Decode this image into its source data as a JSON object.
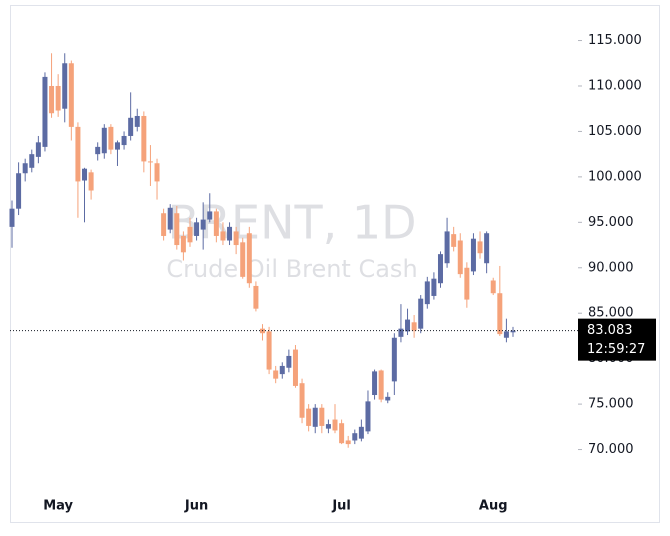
{
  "chart_data": {
    "type": "candlestick",
    "watermark_title": "BRENT, 1D",
    "watermark_subtitle": "Crude Oil Brent Cash",
    "up_color": "#5c6ba3",
    "down_color": "#f5a27a",
    "categories": [
      null,
      null,
      null,
      null,
      null,
      null,
      null,
      "May",
      null,
      null,
      null,
      null,
      null,
      null,
      null,
      null,
      null,
      null,
      null,
      null,
      null,
      null,
      null,
      null,
      null,
      null,
      null,
      null,
      "Jun",
      null,
      null,
      null,
      null,
      null,
      null,
      null,
      null,
      null,
      null,
      null,
      null,
      null,
      null,
      null,
      null,
      null,
      null,
      null,
      null,
      null,
      "Jul",
      null,
      null,
      null,
      null,
      null,
      null,
      null,
      null,
      null,
      null,
      null,
      null,
      null,
      null,
      null,
      null,
      null,
      null,
      null,
      null,
      null,
      null,
      "Aug",
      null,
      null,
      null
    ],
    "open": [
      94.5,
      96.5,
      100.4,
      101.0,
      102.2,
      103.3,
      110.0,
      110.0,
      107.5,
      112.5,
      105.5,
      99.6,
      100.5,
      102.5,
      102.6,
      105.5,
      103.0,
      103.5,
      104.5,
      105.5,
      106.7,
      101.7,
      101.5,
      96.0,
      94.2,
      96.0,
      93.5,
      94.5,
      93.5,
      94.2,
      95.3,
      96.2,
      94.0,
      93.0,
      94.0,
      92.8,
      93.8,
      88.0,
      83.3,
      83.0,
      78.7,
      78.3,
      79.0,
      81.0,
      77.3,
      74.5,
      72.5,
      74.6,
      72.3,
      73.3,
      72.9,
      71.0,
      71.0,
      71.2,
      72.0,
      76.0,
      78.7,
      75.4,
      77.5,
      82.4,
      83.0,
      84.0,
      83.3,
      86.0,
      86.9,
      88.3,
      90.5,
      93.7,
      93.0,
      90.0,
      89.6,
      92.9,
      90.5,
      88.6,
      87.2,
      82.3,
      82.9
    ],
    "high": [
      97.4,
      101.6,
      102.0,
      103.0,
      104.5,
      111.5,
      113.6,
      111.3,
      113.6,
      112.8,
      106.0,
      101.0,
      100.8,
      103.8,
      105.8,
      105.8,
      104.0,
      105.0,
      109.3,
      107.5,
      107.2,
      103.5,
      102.0,
      96.5,
      97.0,
      96.8,
      94.0,
      95.5,
      95.5,
      97.2,
      98.2,
      96.5,
      95.0,
      95.0,
      94.5,
      93.3,
      94.5,
      88.5,
      83.8,
      83.5,
      79.2,
      79.6,
      81.0,
      81.5,
      77.8,
      75.0,
      75.0,
      75.0,
      73.3,
      75.0,
      73.3,
      71.5,
      72.2,
      73.3,
      76.5,
      78.8,
      78.8,
      76.3,
      82.8,
      86.0,
      85.5,
      84.8,
      87.0,
      89.0,
      89.5,
      91.8,
      95.5,
      94.5,
      93.8,
      90.6,
      93.8,
      94.0,
      94.0,
      88.9,
      90.2,
      84.4,
      83.5
    ],
    "low": [
      92.2,
      95.8,
      99.5,
      100.5,
      101.5,
      102.8,
      106.5,
      106.6,
      106.0,
      104.0,
      95.5,
      95.0,
      97.5,
      101.8,
      102.0,
      102.5,
      101.2,
      103.0,
      104.0,
      105.0,
      100.5,
      99.0,
      97.5,
      93.0,
      93.8,
      92.0,
      90.8,
      92.3,
      93.0,
      92.0,
      95.0,
      92.8,
      92.5,
      92.5,
      91.5,
      88.8,
      87.8,
      85.2,
      82.0,
      78.3,
      77.3,
      77.8,
      78.5,
      76.8,
      72.9,
      72.0,
      71.8,
      71.8,
      71.8,
      71.8,
      70.6,
      70.2,
      70.6,
      70.9,
      71.7,
      75.5,
      75.2,
      75.1,
      76.0,
      81.8,
      82.6,
      82.3,
      82.8,
      85.5,
      86.5,
      87.8,
      90.0,
      91.8,
      88.9,
      85.6,
      89.2,
      91.0,
      89.4,
      87.0,
      82.5,
      81.8,
      82.4
    ],
    "close": [
      96.5,
      100.4,
      101.5,
      102.5,
      103.8,
      111.0,
      107.0,
      107.3,
      112.5,
      105.5,
      99.5,
      100.9,
      98.5,
      103.3,
      105.4,
      103.0,
      103.8,
      104.5,
      106.5,
      106.7,
      101.7,
      101.6,
      99.5,
      93.5,
      96.6,
      92.5,
      91.7,
      92.8,
      95.0,
      95.3,
      96.2,
      93.5,
      93.0,
      94.5,
      92.5,
      89.0,
      88.3,
      85.5,
      82.8,
      78.8,
      77.8,
      79.2,
      80.3,
      77.0,
      73.5,
      72.6,
      74.6,
      72.6,
      72.8,
      72.1,
      70.7,
      70.6,
      71.8,
      72.5,
      75.3,
      78.6,
      75.5,
      75.8,
      82.3,
      83.3,
      84.3,
      83.1,
      86.6,
      88.5,
      88.8,
      91.5,
      94.0,
      92.3,
      89.3,
      86.5,
      93.2,
      91.6,
      93.8,
      87.2,
      82.7,
      83.0,
      83.083
    ],
    "ylim": [
      66.1,
      118.8
    ],
    "yticks": [
      {
        "value": 70,
        "label": "70.000"
      },
      {
        "value": 75,
        "label": "75.000"
      },
      {
        "value": 80,
        "label": "80.000"
      },
      {
        "value": 85,
        "label": "85.000"
      },
      {
        "value": 90,
        "label": "90.000"
      },
      {
        "value": 95,
        "label": "95.000"
      },
      {
        "value": 100,
        "label": "100.000"
      },
      {
        "value": 105,
        "label": "105.000"
      },
      {
        "value": 110,
        "label": "110.000"
      },
      {
        "value": 115,
        "label": "115.000"
      }
    ],
    "last_price": 83.083,
    "countdown": "12:59:27",
    "grid": false
  }
}
